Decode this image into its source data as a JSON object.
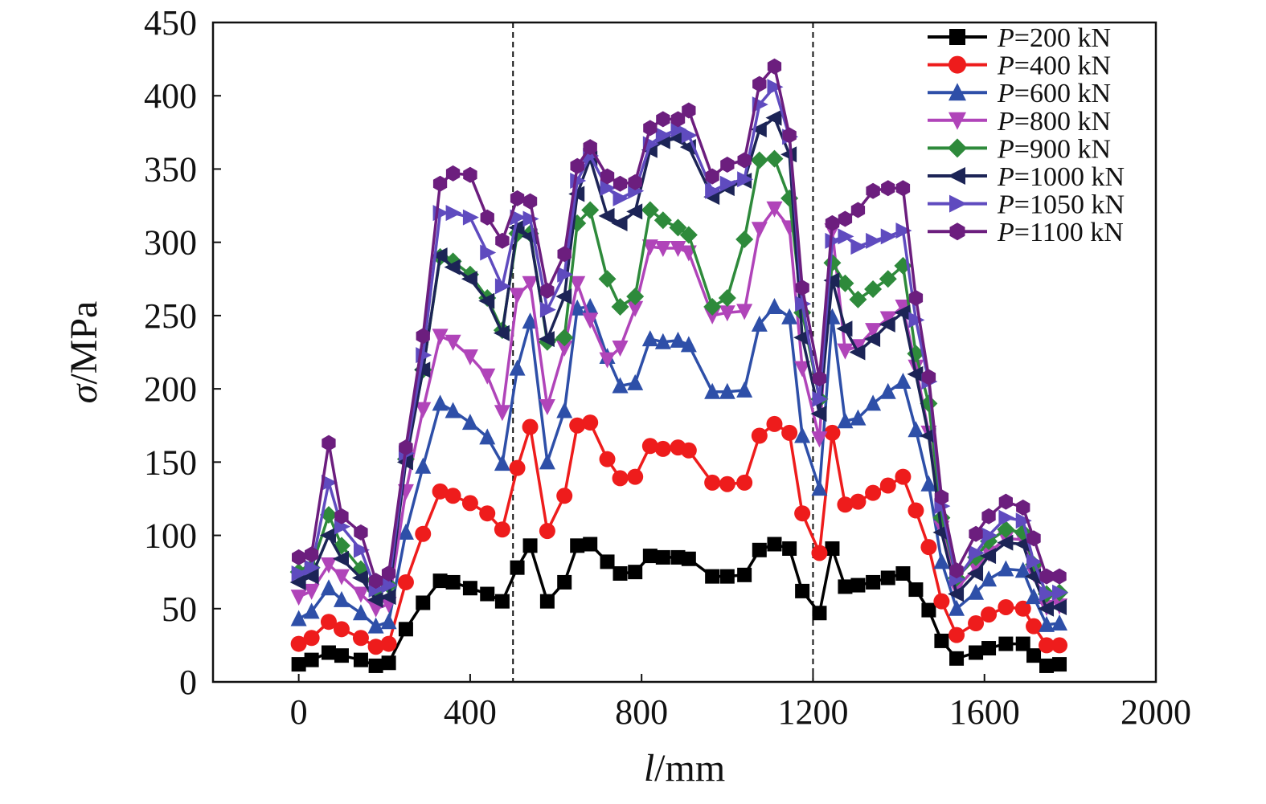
{
  "chart_data": {
    "type": "line",
    "xlabel_var": "l",
    "xlabel_unit": "/mm",
    "ylabel_var": "σ",
    "ylabel_unit": "/MPa",
    "xlim": [
      -200,
      2000
    ],
    "ylim": [
      0,
      450
    ],
    "xticks": [
      0,
      400,
      800,
      1200,
      1600,
      2000
    ],
    "yticks": [
      0,
      50,
      100,
      150,
      200,
      250,
      300,
      350,
      400,
      450
    ],
    "xtick_labels": [
      "0",
      "400",
      "800",
      "1200",
      "1600",
      "2000"
    ],
    "ytick_labels": [
      "0",
      "50",
      "100",
      "150",
      "200",
      "250",
      "300",
      "350",
      "400",
      "450"
    ],
    "vlines": [
      500,
      1200
    ],
    "grid": false,
    "legend_position": "top-right",
    "x": [
      0,
      30,
      70,
      100,
      145,
      180,
      210,
      250,
      290,
      330,
      360,
      400,
      440,
      475,
      510,
      540,
      580,
      620,
      650,
      680,
      720,
      750,
      785,
      820,
      850,
      885,
      910,
      965,
      1000,
      1040,
      1075,
      1110,
      1145,
      1175,
      1215,
      1245,
      1275,
      1305,
      1340,
      1375,
      1410,
      1440,
      1470,
      1500,
      1535,
      1580,
      1610,
      1650,
      1690,
      1715,
      1745,
      1775
    ],
    "series": [
      {
        "name_var": "P",
        "name_val": "=200 kN",
        "color": "#000000",
        "marker": "square",
        "values": [
          12,
          15,
          20,
          18,
          15,
          11,
          13,
          36,
          54,
          69,
          68,
          64,
          60,
          55,
          78,
          93,
          55,
          68,
          93,
          94,
          82,
          74,
          75,
          86,
          85,
          85,
          84,
          72,
          72,
          73,
          90,
          94,
          91,
          62,
          47,
          91,
          65,
          66,
          68,
          71,
          74,
          63,
          49,
          28,
          16,
          20,
          23,
          26,
          26,
          18,
          11,
          12
        ]
      },
      {
        "name_var": "P",
        "name_val": "=400 kN",
        "color": "#ee1c1c",
        "marker": "circle",
        "values": [
          26,
          30,
          41,
          36,
          30,
          24,
          26,
          68,
          101,
          130,
          127,
          122,
          115,
          104,
          146,
          174,
          103,
          127,
          175,
          177,
          152,
          139,
          140,
          161,
          159,
          160,
          158,
          136,
          135,
          136,
          168,
          176,
          170,
          115,
          88,
          170,
          121,
          123,
          129,
          134,
          140,
          117,
          92,
          55,
          32,
          40,
          46,
          51,
          50,
          38,
          25,
          25
        ]
      },
      {
        "name_var": "P",
        "name_val": "=600 kN",
        "color": "#2e4fa8",
        "marker": "triangle-up",
        "values": [
          43,
          48,
          64,
          56,
          47,
          38,
          41,
          102,
          147,
          190,
          185,
          177,
          167,
          149,
          214,
          246,
          150,
          185,
          255,
          256,
          222,
          202,
          204,
          234,
          232,
          233,
          230,
          198,
          198,
          199,
          244,
          256,
          249,
          168,
          132,
          249,
          178,
          180,
          190,
          198,
          205,
          172,
          135,
          82,
          50,
          61,
          70,
          77,
          76,
          58,
          39,
          40
        ]
      },
      {
        "name_var": "P",
        "name_val": "=800 kN",
        "color": "#b044b9",
        "marker": "triangle-down",
        "values": [
          58,
          62,
          80,
          72,
          60,
          50,
          53,
          130,
          186,
          236,
          232,
          222,
          209,
          184,
          264,
          272,
          188,
          228,
          272,
          247,
          220,
          228,
          255,
          297,
          296,
          296,
          293,
          250,
          252,
          253,
          309,
          323,
          310,
          214,
          166,
          308,
          226,
          229,
          240,
          248,
          256,
          215,
          170,
          105,
          64,
          78,
          88,
          98,
          97,
          74,
          51,
          52
        ]
      },
      {
        "name_var": "P",
        "name_val": "=900 kN",
        "color": "#2e8a3b",
        "marker": "diamond",
        "values": [
          75,
          78,
          114,
          93,
          77,
          62,
          66,
          152,
          213,
          290,
          287,
          278,
          262,
          240,
          306,
          306,
          232,
          235,
          313,
          322,
          275,
          256,
          263,
          322,
          315,
          310,
          305,
          256,
          262,
          302,
          356,
          357,
          330,
          252,
          193,
          286,
          272,
          261,
          268,
          275,
          284,
          224,
          190,
          112,
          71,
          85,
          96,
          104,
          102,
          80,
          60,
          61
        ]
      },
      {
        "name_var": "P",
        "name_val": "=1000 kN",
        "color": "#1c2456",
        "marker": "triangle-left",
        "values": [
          68,
          72,
          100,
          84,
          71,
          56,
          58,
          150,
          213,
          291,
          283,
          275,
          260,
          238,
          310,
          304,
          234,
          263,
          333,
          357,
          318,
          313,
          321,
          363,
          369,
          371,
          365,
          331,
          337,
          342,
          377,
          385,
          360,
          235,
          183,
          274,
          241,
          225,
          234,
          244,
          252,
          210,
          168,
          102,
          60,
          74,
          86,
          95,
          94,
          72,
          50,
          51
        ]
      },
      {
        "name_var": "P",
        "name_val": "=1050 kN",
        "color": "#5f4bbf",
        "marker": "triangle-right",
        "values": [
          74,
          78,
          136,
          106,
          90,
          63,
          66,
          156,
          223,
          320,
          320,
          317,
          293,
          270,
          317,
          316,
          254,
          278,
          342,
          359,
          337,
          330,
          335,
          367,
          373,
          377,
          373,
          335,
          340,
          343,
          394,
          406,
          372,
          258,
          193,
          301,
          304,
          297,
          301,
          304,
          308,
          247,
          205,
          120,
          70,
          88,
          100,
          112,
          110,
          82,
          60,
          61
        ]
      },
      {
        "name_var": "P",
        "name_val": "=1100 kN",
        "color": "#6c1e7e",
        "marker": "hexagon",
        "values": [
          85,
          87,
          163,
          113,
          102,
          69,
          74,
          160,
          236,
          340,
          347,
          346,
          317,
          301,
          330,
          328,
          267,
          292,
          352,
          365,
          345,
          340,
          341,
          378,
          384,
          384,
          390,
          345,
          353,
          356,
          408,
          420,
          373,
          269,
          207,
          313,
          316,
          322,
          335,
          337,
          337,
          262,
          208,
          126,
          76,
          101,
          113,
          123,
          119,
          98,
          72,
          72
        ]
      }
    ]
  }
}
